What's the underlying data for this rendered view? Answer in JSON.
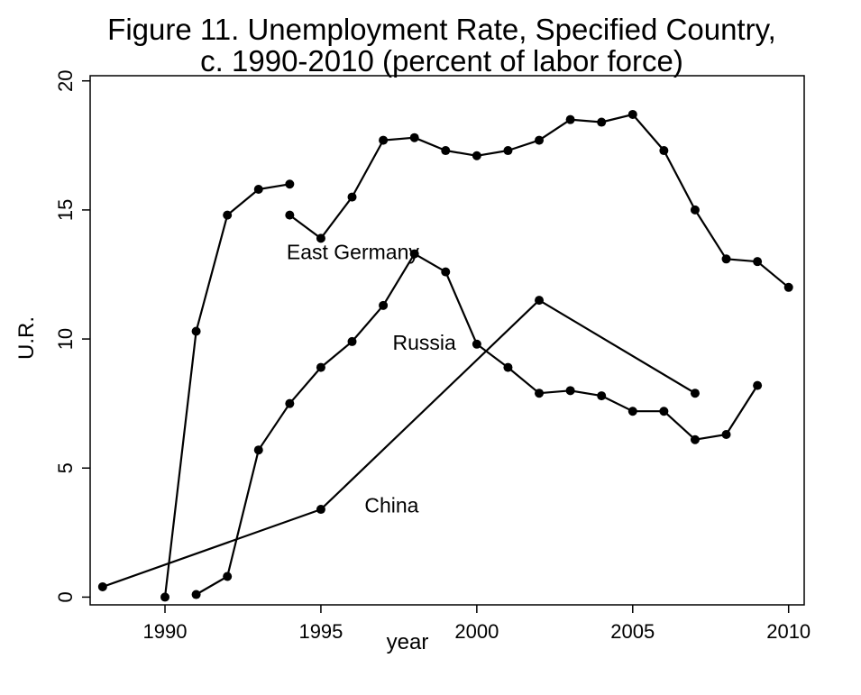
{
  "chart_data": {
    "type": "line",
    "title_lines": [
      "Figure 11. Unemployment Rate, Specified Country,",
      "c. 1990-2010 (percent of labor force)"
    ],
    "xlabel": "year",
    "ylabel": "U.R.",
    "xlim": [
      1987.6,
      2010.5
    ],
    "ylim": [
      -0.3,
      20.2
    ],
    "xticks": [
      1990,
      1995,
      2000,
      2005,
      2010
    ],
    "yticks": [
      0,
      5,
      10,
      15,
      20
    ],
    "grid": false,
    "legend": "none",
    "line_color": "#000000",
    "marker": "filled-circle",
    "series": [
      {
        "name": "East Germany",
        "segments": [
          [
            [
              1990,
              0.0
            ],
            [
              1991,
              10.3
            ],
            [
              1992,
              14.8
            ],
            [
              1993,
              15.8
            ],
            [
              1994,
              16.0
            ]
          ],
          [
            [
              1994,
              14.8
            ],
            [
              1995,
              13.9
            ],
            [
              1996,
              15.5
            ],
            [
              1997,
              17.7
            ],
            [
              1998,
              17.8
            ],
            [
              1999,
              17.3
            ],
            [
              2000,
              17.1
            ],
            [
              2001,
              17.3
            ],
            [
              2002,
              17.7
            ],
            [
              2003,
              18.5
            ],
            [
              2004,
              18.4
            ],
            [
              2005,
              18.7
            ],
            [
              2006,
              17.3
            ],
            [
              2007,
              15.0
            ],
            [
              2008,
              13.1
            ],
            [
              2009,
              13.0
            ],
            [
              2010,
              12.0
            ]
          ]
        ]
      },
      {
        "name": "Russia",
        "segments": [
          [
            [
              1991,
              0.1
            ],
            [
              1992,
              0.8
            ],
            [
              1993,
              5.7
            ],
            [
              1994,
              7.5
            ],
            [
              1995,
              8.9
            ],
            [
              1996,
              9.9
            ],
            [
              1997,
              11.3
            ],
            [
              1998,
              13.3
            ],
            [
              1999,
              12.6
            ],
            [
              2000,
              9.8
            ],
            [
              2001,
              8.9
            ],
            [
              2002,
              7.9
            ],
            [
              2003,
              8.0
            ],
            [
              2004,
              7.8
            ],
            [
              2005,
              7.2
            ],
            [
              2006,
              7.2
            ],
            [
              2007,
              6.1
            ],
            [
              2008,
              6.3
            ],
            [
              2009,
              8.2
            ]
          ]
        ]
      },
      {
        "name": "China",
        "segments": [
          [
            [
              1988,
              0.4
            ],
            [
              1995,
              3.4
            ],
            [
              2002,
              11.5
            ],
            [
              2007,
              7.9
            ]
          ]
        ]
      }
    ],
    "annotations": [
      {
        "text": "East Germany",
        "x": 1993.9,
        "y": 13.3
      },
      {
        "text": "Russia",
        "x": 1997.3,
        "y": 9.8
      },
      {
        "text": "China",
        "x": 1996.4,
        "y": 3.5
      }
    ]
  }
}
